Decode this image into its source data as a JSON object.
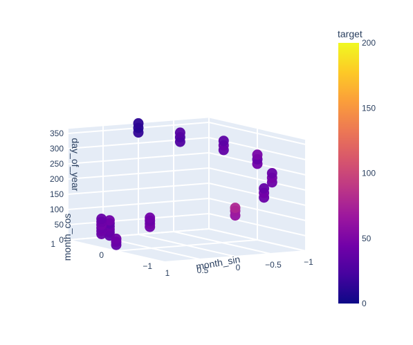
{
  "chart_data": {
    "type": "scatter3d",
    "axes": {
      "x": {
        "title": "month_sin",
        "ticks": [
          "1",
          "0.5",
          "0",
          "−0.5",
          "−1"
        ],
        "range": [
          -1,
          1
        ]
      },
      "y": {
        "title": "month_cos",
        "ticks": [
          "1",
          "0",
          "−1"
        ],
        "range": [
          -1,
          1
        ]
      },
      "z": {
        "title": "day_of_year",
        "ticks": [
          "0",
          "50",
          "100",
          "150",
          "200",
          "250",
          "300",
          "350"
        ],
        "range": [
          0,
          365
        ]
      }
    },
    "colorbar": {
      "title": "target",
      "ticks": [
        "0",
        "50",
        "100",
        "150",
        "200"
      ],
      "range": [
        0,
        200
      ],
      "colorscale": [
        "#0d0887",
        "#46039f",
        "#7201a8",
        "#9c179e",
        "#bd3786",
        "#d8576b",
        "#ed7953",
        "#fb9f3a",
        "#fdca26",
        "#f0f921"
      ]
    },
    "points": [
      {
        "x": 0.5,
        "y": 0.866,
        "z": 10,
        "target": 35
      },
      {
        "x": 0.5,
        "y": 0.866,
        "z": 20,
        "target": 38
      },
      {
        "x": 0.5,
        "y": 0.866,
        "z": 30,
        "target": 40
      },
      {
        "x": 0.5,
        "y": 0.866,
        "z": 40,
        "target": 42
      },
      {
        "x": 0.5,
        "y": 0.866,
        "z": 50,
        "target": 36
      },
      {
        "x": 0.5,
        "y": 0.866,
        "z": 60,
        "target": 44
      },
      {
        "x": 0.866,
        "y": 0.5,
        "z": 35,
        "target": 38
      },
      {
        "x": 0.866,
        "y": 0.5,
        "z": 45,
        "target": 42
      },
      {
        "x": 0.866,
        "y": 0.5,
        "z": 55,
        "target": 40
      },
      {
        "x": 0.866,
        "y": 0.5,
        "z": 65,
        "target": 45
      },
      {
        "x": 0.866,
        "y": 0.5,
        "z": 75,
        "target": 41
      },
      {
        "x": 0.866,
        "y": 0.5,
        "z": 85,
        "target": 39
      },
      {
        "x": 1.0,
        "y": 0.0,
        "z": 20,
        "target": 36
      },
      {
        "x": 1.0,
        "y": 0.0,
        "z": 30,
        "target": 40
      },
      {
        "x": 1.0,
        "y": 0.0,
        "z": 40,
        "target": 43
      },
      {
        "x": 0.866,
        "y": -0.5,
        "z": 95,
        "target": 42
      },
      {
        "x": 0.866,
        "y": -0.5,
        "z": 105,
        "target": 46
      },
      {
        "x": 0.866,
        "y": -0.5,
        "z": 115,
        "target": 40
      },
      {
        "x": 0.866,
        "y": -0.5,
        "z": 125,
        "target": 44
      },
      {
        "x": 0.0,
        "y": -1.0,
        "z": 135,
        "target": 62
      },
      {
        "x": 0.0,
        "y": -1.0,
        "z": 150,
        "target": 68
      },
      {
        "x": 0.0,
        "y": -1.0,
        "z": 160,
        "target": 78
      },
      {
        "x": -0.5,
        "y": -0.866,
        "z": 180,
        "target": 40
      },
      {
        "x": -0.5,
        "y": -0.866,
        "z": 195,
        "target": 44
      },
      {
        "x": -0.5,
        "y": -0.866,
        "z": 210,
        "target": 38
      },
      {
        "x": -0.866,
        "y": -0.5,
        "z": 210,
        "target": 42
      },
      {
        "x": -0.866,
        "y": -0.5,
        "z": 225,
        "target": 46
      },
      {
        "x": -0.866,
        "y": -0.5,
        "z": 240,
        "target": 40
      },
      {
        "x": -1.0,
        "y": 0.0,
        "z": 250,
        "target": 44
      },
      {
        "x": -1.0,
        "y": 0.0,
        "z": 265,
        "target": 38
      },
      {
        "x": -1.0,
        "y": 0.0,
        "z": 280,
        "target": 48
      },
      {
        "x": -0.866,
        "y": 0.5,
        "z": 280,
        "target": 36
      },
      {
        "x": -0.866,
        "y": 0.5,
        "z": 295,
        "target": 40
      },
      {
        "x": -0.866,
        "y": 0.5,
        "z": 310,
        "target": 34
      },
      {
        "x": -0.5,
        "y": 0.866,
        "z": 300,
        "target": 28
      },
      {
        "x": -0.5,
        "y": 0.866,
        "z": 315,
        "target": 25
      },
      {
        "x": -0.5,
        "y": 0.866,
        "z": 330,
        "target": 30
      },
      {
        "x": 0.0,
        "y": 1.0,
        "z": 335,
        "target": 15
      },
      {
        "x": 0.0,
        "y": 1.0,
        "z": 350,
        "target": 10
      },
      {
        "x": 0.0,
        "y": 1.0,
        "z": 365,
        "target": 12
      }
    ]
  }
}
